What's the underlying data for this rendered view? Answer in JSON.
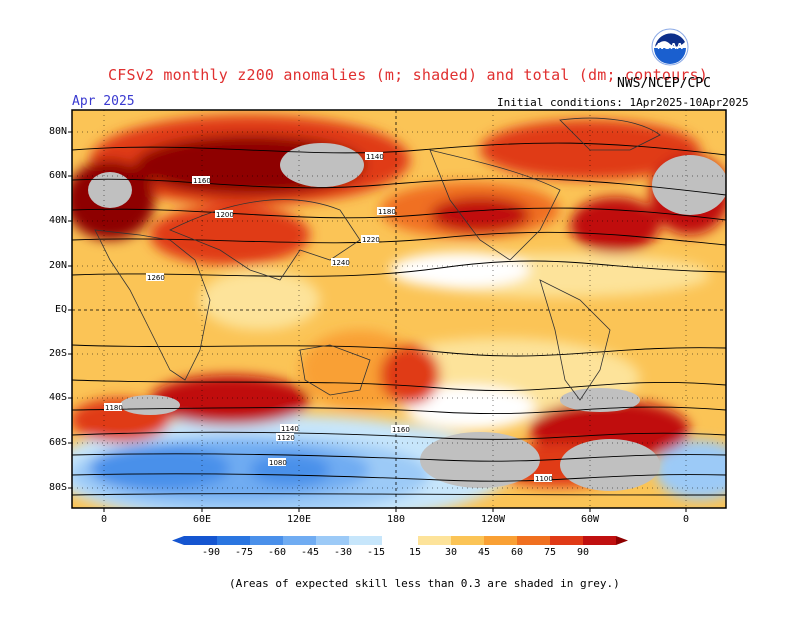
{
  "header": {
    "title": "CFSv2 monthly z200 anomalies (m; shaded) and total (dm; contours)",
    "agency": "NWS/NCEP/CPC",
    "month": "Apr 2025",
    "initial_conditions": "Initial conditions: 1Apr2025-10Apr2025"
  },
  "logo": {
    "icon": "noaa-logo-icon",
    "color": "#1a5fcf"
  },
  "axes": {
    "lat_labels": [
      "80N",
      "60N",
      "40N",
      "20N",
      "EQ",
      "20S",
      "40S",
      "60S",
      "80S"
    ],
    "lon_labels": [
      "0",
      "60E",
      "120E",
      "180",
      "120W",
      "60W",
      "0"
    ]
  },
  "contour_labels": [
    "1140",
    "1160",
    "1180",
    "1200",
    "1220",
    "1240",
    "1260",
    "1180",
    "1160",
    "1140",
    "1120",
    "1100",
    "1080"
  ],
  "colorbar": {
    "labels": [
      "-90",
      "-75",
      "-60",
      "-45",
      "-30",
      "-15",
      "15",
      "30",
      "45",
      "60",
      "75",
      "90"
    ],
    "colors": [
      "#1555d0",
      "#2a75e0",
      "#4a90ea",
      "#70acf2",
      "#9ccaf7",
      "#c7e6fb",
      "#ffffff",
      "#fde39a",
      "#fbc456",
      "#f9a034",
      "#f07020",
      "#e03a16",
      "#c01010",
      "#8e0000"
    ]
  },
  "footer": {
    "note": "(Areas of expected skill less than 0.3 are shaded in grey.)"
  }
}
